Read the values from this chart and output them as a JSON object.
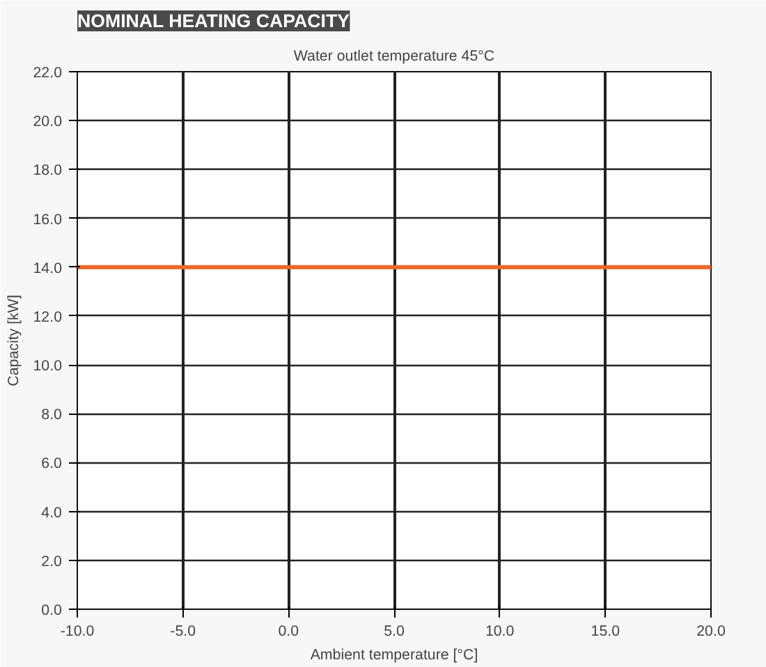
{
  "chart_data": {
    "type": "line",
    "title": "NOMINAL HEATING CAPACITY",
    "subtitle": "Water outlet temperature 45°C",
    "xlabel": "Ambient temperature [°C]",
    "ylabel": "Capacity [kW]",
    "x": [
      -10,
      20
    ],
    "series": [
      {
        "color": "#e8692a",
        "values": [
          14,
          14
        ]
      }
    ],
    "xlim": [
      -10,
      20
    ],
    "ylim": [
      0,
      22
    ],
    "xticks": [
      {
        "value": -10,
        "label": "-10.0"
      },
      {
        "value": -5,
        "label": "-5.0"
      },
      {
        "value": 0,
        "label": "0.0"
      },
      {
        "value": 5,
        "label": "5.0"
      },
      {
        "value": 10,
        "label": "10.0"
      },
      {
        "value": 15,
        "label": "15.0"
      },
      {
        "value": 20,
        "label": "20.0"
      }
    ],
    "yticks": [
      {
        "value": 0,
        "label": "0.0"
      },
      {
        "value": 2,
        "label": "2.0"
      },
      {
        "value": 4,
        "label": "4.0"
      },
      {
        "value": 6,
        "label": "6.0"
      },
      {
        "value": 8,
        "label": "8.0"
      },
      {
        "value": 10,
        "label": "10.0"
      },
      {
        "value": 12,
        "label": "12.0"
      },
      {
        "value": 14,
        "label": "14.0"
      },
      {
        "value": 16,
        "label": "16.0"
      },
      {
        "value": 18,
        "label": "18.0"
      },
      {
        "value": 20,
        "label": "20.0"
      },
      {
        "value": 22,
        "label": "22.0"
      }
    ],
    "grid": true,
    "line_style": "solid"
  }
}
